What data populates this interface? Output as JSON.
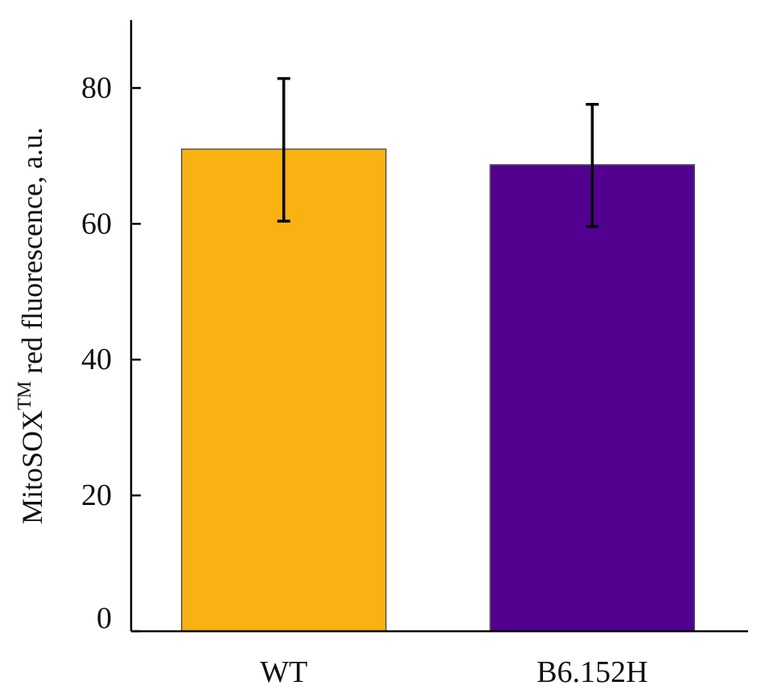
{
  "chart_data": {
    "type": "bar",
    "title": "",
    "xlabel": "",
    "ylabel": {
      "base": "MitoSOX",
      "superscript": "TM",
      "rest": " red fluorescence, a.u."
    },
    "categories": [
      "WT",
      "B6.152H"
    ],
    "values": [
      71,
      68.7
    ],
    "errors": [
      {
        "low": 60.4,
        "high": 81.4
      },
      {
        "low": 59.6,
        "high": 77.6
      }
    ],
    "colors": [
      "#F9B211",
      "#52008F"
    ],
    "yticks": [
      0,
      20,
      40,
      60,
      80
    ],
    "ylim": [
      0,
      90
    ],
    "grid": false
  }
}
